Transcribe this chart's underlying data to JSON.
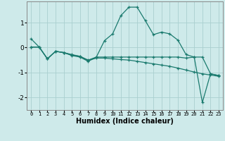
{
  "xlabel": "Humidex (Indice chaleur)",
  "ylabel": "",
  "background_color": "#ceeaea",
  "line_color": "#1a7a6e",
  "grid_color": "#aacfcf",
  "xlim": [
    -0.5,
    23.5
  ],
  "ylim": [
    -2.5,
    1.85
  ],
  "yticks": [
    -2,
    -1,
    0,
    1
  ],
  "xticks": [
    0,
    1,
    2,
    3,
    4,
    5,
    6,
    7,
    8,
    9,
    10,
    11,
    12,
    13,
    14,
    15,
    16,
    17,
    18,
    19,
    20,
    21,
    22,
    23
  ],
  "series": [
    {
      "x": [
        0,
        1,
        2,
        3,
        4,
        5,
        6,
        7,
        8,
        9,
        10,
        11,
        12,
        13,
        14,
        15,
        16,
        17,
        18,
        19,
        20,
        21,
        22,
        23
      ],
      "y": [
        0.35,
        0.02,
        -0.45,
        -0.15,
        -0.2,
        -0.3,
        -0.35,
        -0.5,
        -0.38,
        0.28,
        0.55,
        1.28,
        1.62,
        1.62,
        1.08,
        0.52,
        0.62,
        0.55,
        0.3,
        -0.28,
        -0.38,
        -2.2,
        -1.05,
        -1.12
      ]
    },
    {
      "x": [
        0,
        1,
        2,
        3,
        4,
        5,
        6,
        7,
        8,
        9,
        10,
        11,
        12,
        13,
        14,
        15,
        16,
        17,
        18,
        19,
        20,
        21,
        22,
        23
      ],
      "y": [
        0.02,
        0.02,
        -0.45,
        -0.15,
        -0.2,
        -0.32,
        -0.38,
        -0.55,
        -0.38,
        -0.38,
        -0.38,
        -0.38,
        -0.38,
        -0.38,
        -0.38,
        -0.38,
        -0.38,
        -0.38,
        -0.38,
        -0.42,
        -0.38,
        -0.38,
        -1.05,
        -1.12
      ]
    },
    {
      "x": [
        0,
        1,
        2,
        3,
        4,
        5,
        6,
        7,
        8,
        9,
        10,
        11,
        12,
        13,
        14,
        15,
        16,
        17,
        18,
        19,
        20,
        21,
        22,
        23
      ],
      "y": [
        0.02,
        0.02,
        -0.45,
        -0.15,
        -0.2,
        -0.28,
        -0.35,
        -0.52,
        -0.42,
        -0.42,
        -0.45,
        -0.48,
        -0.5,
        -0.55,
        -0.6,
        -0.65,
        -0.7,
        -0.75,
        -0.82,
        -0.9,
        -0.98,
        -1.05,
        -1.1,
        -1.15
      ]
    }
  ]
}
